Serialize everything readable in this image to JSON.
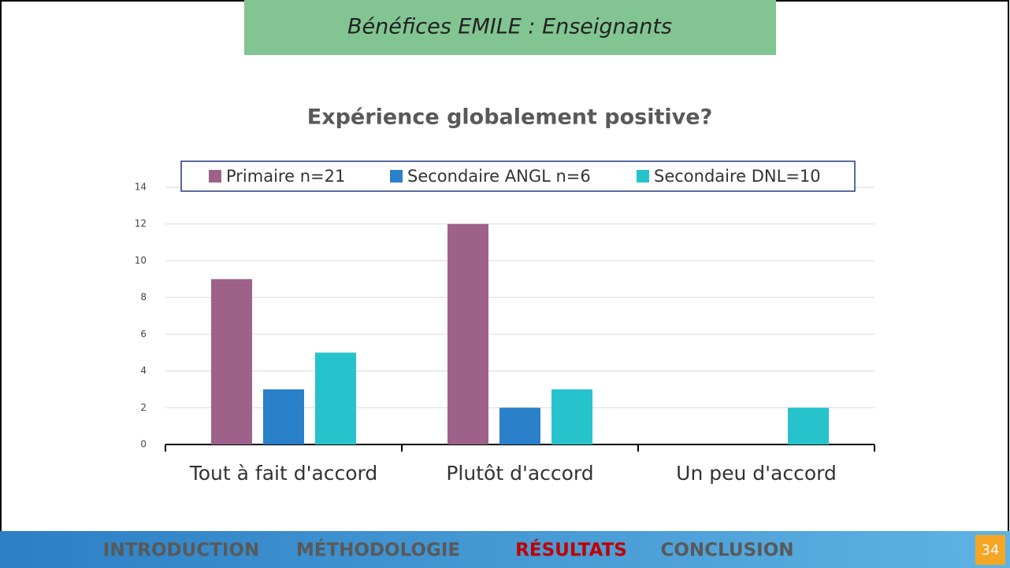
{
  "header": {
    "title": "Bénéfices EMILE : Enseignants"
  },
  "chart_data": {
    "type": "bar",
    "title": "Expérience globalement positive?",
    "categories": [
      "Tout à fait d'accord",
      "Plutôt d'accord",
      "Un peu d'accord"
    ],
    "series": [
      {
        "name": "Primaire n=21",
        "color": "#9e6189",
        "values": [
          9,
          12,
          0
        ]
      },
      {
        "name": "Secondaire ANGL n=6",
        "color": "#2a80c9",
        "values": [
          3,
          2,
          0
        ]
      },
      {
        "name": "Secondaire DNL=10",
        "color": "#27c3cc",
        "values": [
          5,
          3,
          2
        ]
      }
    ],
    "ylim": [
      0,
      14
    ],
    "yticks": [
      0,
      2,
      4,
      6,
      8,
      10,
      12,
      14
    ],
    "grid": true,
    "legend": "top"
  },
  "nav": {
    "items": [
      "INTRODUCTION",
      "MÉTHODOLOGIE",
      "RÉSULTATS",
      "CONCLUSION"
    ],
    "active": 2,
    "page": "34"
  }
}
